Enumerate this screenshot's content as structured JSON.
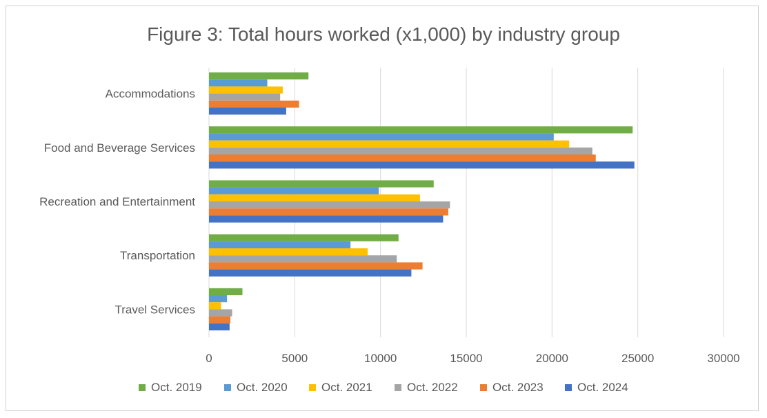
{
  "chart_data": {
    "type": "bar",
    "orientation": "horizontal",
    "title": "Figure 3: Total hours worked (x1,000) by industry group",
    "categories": [
      "Accommodations",
      "Food and Beverage Services",
      "Recreation and Entertainment",
      "Transportation",
      "Travel Services"
    ],
    "xlim": [
      0,
      30000
    ],
    "xticks": [
      "0",
      "5000",
      "10000",
      "15000",
      "20000",
      "25000",
      "30000"
    ],
    "grid": "vertical",
    "legend_position": "bottom",
    "series": [
      {
        "name": "Oct. 2019",
        "color": "#70ad47",
        "values": [
          5800,
          24700,
          13100,
          11050,
          1950
        ]
      },
      {
        "name": "Oct. 2020",
        "color": "#5b9bd5",
        "values": [
          3400,
          20100,
          9900,
          8250,
          1050
        ]
      },
      {
        "name": "Oct. 2021",
        "color": "#ffc000",
        "values": [
          4300,
          21000,
          12300,
          9250,
          700
        ]
      },
      {
        "name": "Oct. 2022",
        "color": "#a5a5a5",
        "values": [
          4150,
          22350,
          14050,
          10950,
          1350
        ]
      },
      {
        "name": "Oct. 2023",
        "color": "#ed7d31",
        "values": [
          5250,
          22550,
          13950,
          12450,
          1250
        ]
      },
      {
        "name": "Oct. 2024",
        "color": "#4472c4",
        "values": [
          4500,
          24800,
          13650,
          11800,
          1200
        ]
      }
    ]
  }
}
